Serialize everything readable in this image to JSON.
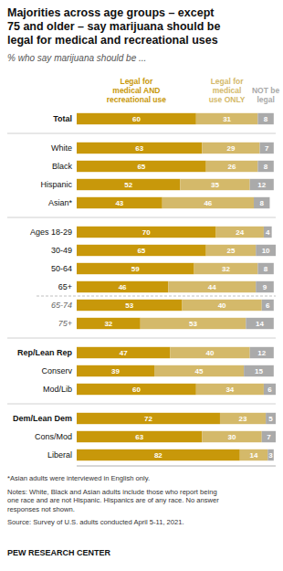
{
  "chart_data": {
    "type": "bar",
    "orientation": "horizontal",
    "stacked": true,
    "data_labels": true,
    "tick_labels": "y",
    "grid": false,
    "title": "Majorities across age groups – except\n75 and older – say marijuana should be\nlegal for medical and recreational uses",
    "subtitle": "% who say marijuana should be ...",
    "categories": [
      "Total",
      "White",
      "Black",
      "Hispanic",
      "Asian*",
      "Ages 18-29",
      "30-49",
      "50-64",
      "65+",
      "65-74",
      "75+",
      "Rep/Lean Rep",
      "Conserv",
      "Mod/Lib",
      "Dem/Lean Dem",
      "Cons/Mod",
      "Liberal"
    ],
    "series": [
      {
        "name": "Legal for\nmedical AND\nrecreational use",
        "color": "#C8980A",
        "values": [
          60,
          63,
          65,
          52,
          43,
          70,
          65,
          59,
          46,
          53,
          32,
          47,
          39,
          60,
          72,
          63,
          82
        ]
      },
      {
        "name": "Legal for\nmedical\nuse ONLY",
        "color": "#D4B96A",
        "values": [
          31,
          29,
          26,
          35,
          46,
          24,
          25,
          32,
          44,
          40,
          53,
          40,
          45,
          34,
          23,
          30,
          14
        ]
      },
      {
        "name": "NOT be\nlegal",
        "color": "#AAAAAA",
        "values": [
          8,
          7,
          8,
          12,
          8,
          4,
          10,
          8,
          9,
          6,
          14,
          12,
          15,
          6,
          5,
          7,
          3
        ]
      }
    ],
    "xlim": [
      0,
      100
    ],
    "annotations": [
      "*Asian adults were interviewed in English only.",
      "Notes: White, Black and Asian adults include those who report being\none race and are not Hispanic. Hispanics are of any race. No answer\nresponses not shown.",
      "Source: Survey of U.S. adults conducted April 5-11, 2021.",
      "PEW RESEARCH CENTER"
    ]
  }
}
